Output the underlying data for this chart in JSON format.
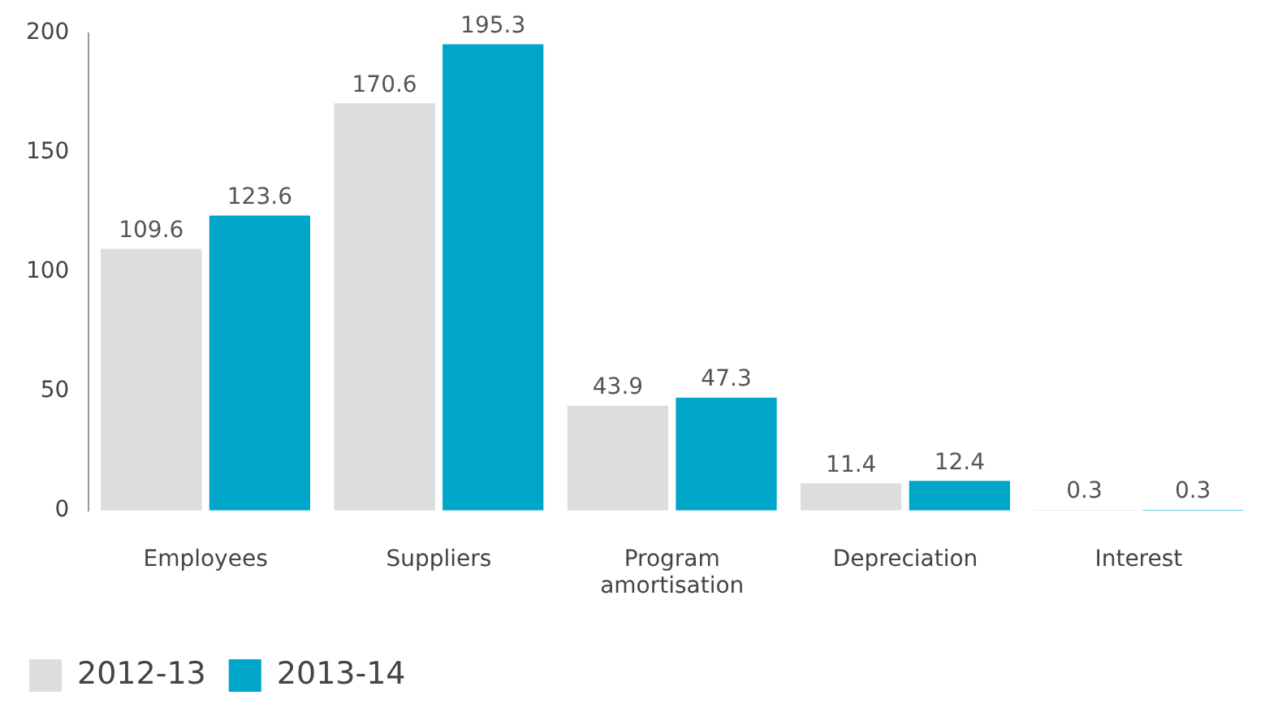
{
  "chart_data": {
    "type": "bar",
    "categories": [
      "Employees",
      "Suppliers",
      "Program amortisation",
      "Depreciation",
      "Interest"
    ],
    "series": [
      {
        "name": "2012-13",
        "color": "#dcdddf",
        "values": [
          109.6,
          170.6,
          43.9,
          11.4,
          0.3
        ]
      },
      {
        "name": "2013-14",
        "color": "#00a6c8",
        "values": [
          123.6,
          195.3,
          47.3,
          12.4,
          0.3
        ]
      }
    ],
    "ylim": [
      0,
      200
    ],
    "yticks": [
      0,
      50,
      100,
      150,
      200
    ],
    "grid": false,
    "legend": "bottom left",
    "data_labels": true
  }
}
